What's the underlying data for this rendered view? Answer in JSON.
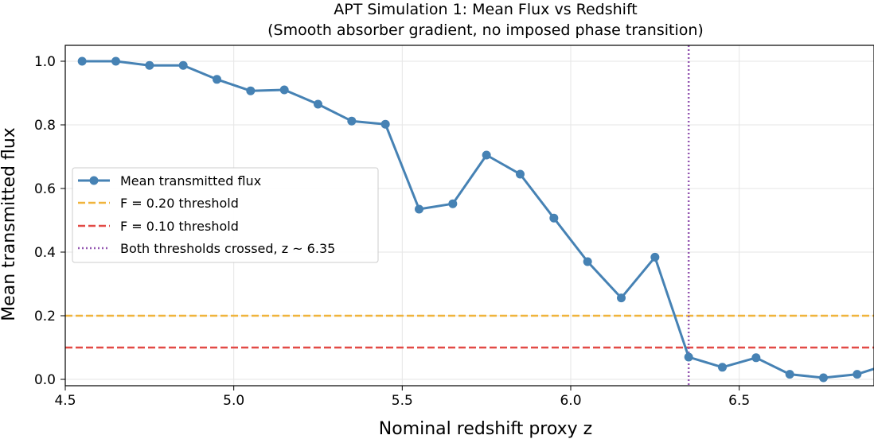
{
  "chart_data": {
    "type": "line",
    "title": "APT Simulation 1: Mean Flux vs Redshift",
    "subtitle": "(Smooth absorber gradient, no imposed phase transition)",
    "xlabel": "Nominal redshift proxy z",
    "ylabel": "Mean transmitted flux",
    "xlim": [
      4.5,
      6.9
    ],
    "ylim": [
      -0.02,
      1.05
    ],
    "xticks": [
      "4.5",
      "5.0",
      "5.5",
      "6.0",
      "6.5"
    ],
    "yticks": [
      "0.0",
      "0.2",
      "0.4",
      "0.6",
      "0.8",
      "1.0"
    ],
    "grid": true,
    "legend_position": "center-left",
    "series": [
      {
        "name": "Mean transmitted flux",
        "color": "#4682b4",
        "x": [
          4.55,
          4.65,
          4.75,
          4.85,
          4.95,
          5.05,
          5.15,
          5.25,
          5.35,
          5.45,
          5.55,
          5.65,
          5.75,
          5.85,
          5.95,
          6.05,
          6.15,
          6.25,
          6.35,
          6.45,
          6.55,
          6.65,
          6.75,
          6.85,
          6.95
        ],
        "y": [
          1.0,
          1.0,
          0.987,
          0.987,
          0.943,
          0.907,
          0.91,
          0.865,
          0.812,
          0.802,
          0.535,
          0.552,
          0.705,
          0.645,
          0.507,
          0.37,
          0.256,
          0.384,
          0.07,
          0.038,
          0.068,
          0.016,
          0.005,
          0.016,
          0.05
        ]
      }
    ],
    "reference_lines": [
      {
        "name": "F = 0.20 threshold",
        "orientation": "horizontal",
        "value": 0.2,
        "color": "#f0b43c",
        "style": "dashed"
      },
      {
        "name": "F = 0.10 threshold",
        "orientation": "horizontal",
        "value": 0.1,
        "color": "#e24a46",
        "style": "dashed"
      },
      {
        "name": "Both thresholds crossed, z ~ 6.35",
        "orientation": "vertical",
        "value": 6.35,
        "color": "#9558b2",
        "style": "dotted"
      }
    ]
  }
}
